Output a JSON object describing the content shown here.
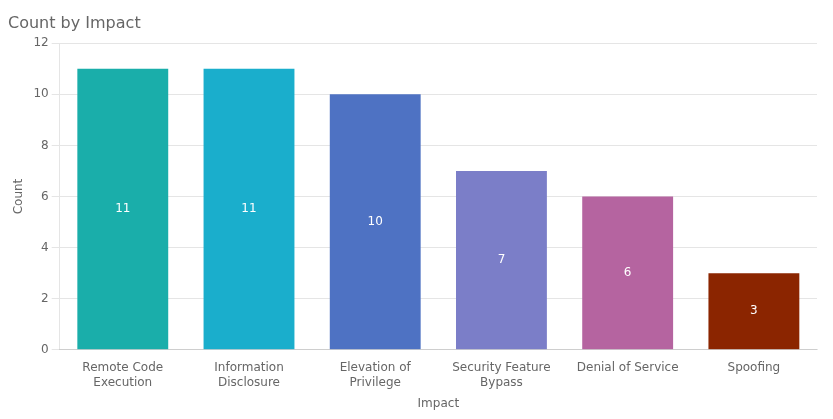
{
  "chart_data": {
    "type": "bar",
    "title": "Count by Impact",
    "categories": [
      "Remote Code\nExecution",
      "Information\nDisclosure",
      "Elevation of\nPrivilege",
      "Security Feature\nBypass",
      "Denial of Service",
      "Spoofing"
    ],
    "values": [
      11,
      11,
      10,
      7,
      6,
      3
    ],
    "colors": [
      "#1AAEAA",
      "#1AAECC",
      "#4E72C3",
      "#7B7EC8",
      "#B564A0",
      "#8B2500"
    ],
    "xlabel": "Impact",
    "ylabel": "Count",
    "ylim": [
      0,
      12
    ],
    "yticks": [
      0,
      2,
      4,
      6,
      8,
      10,
      12
    ],
    "grid": true,
    "data_labels": true
  }
}
